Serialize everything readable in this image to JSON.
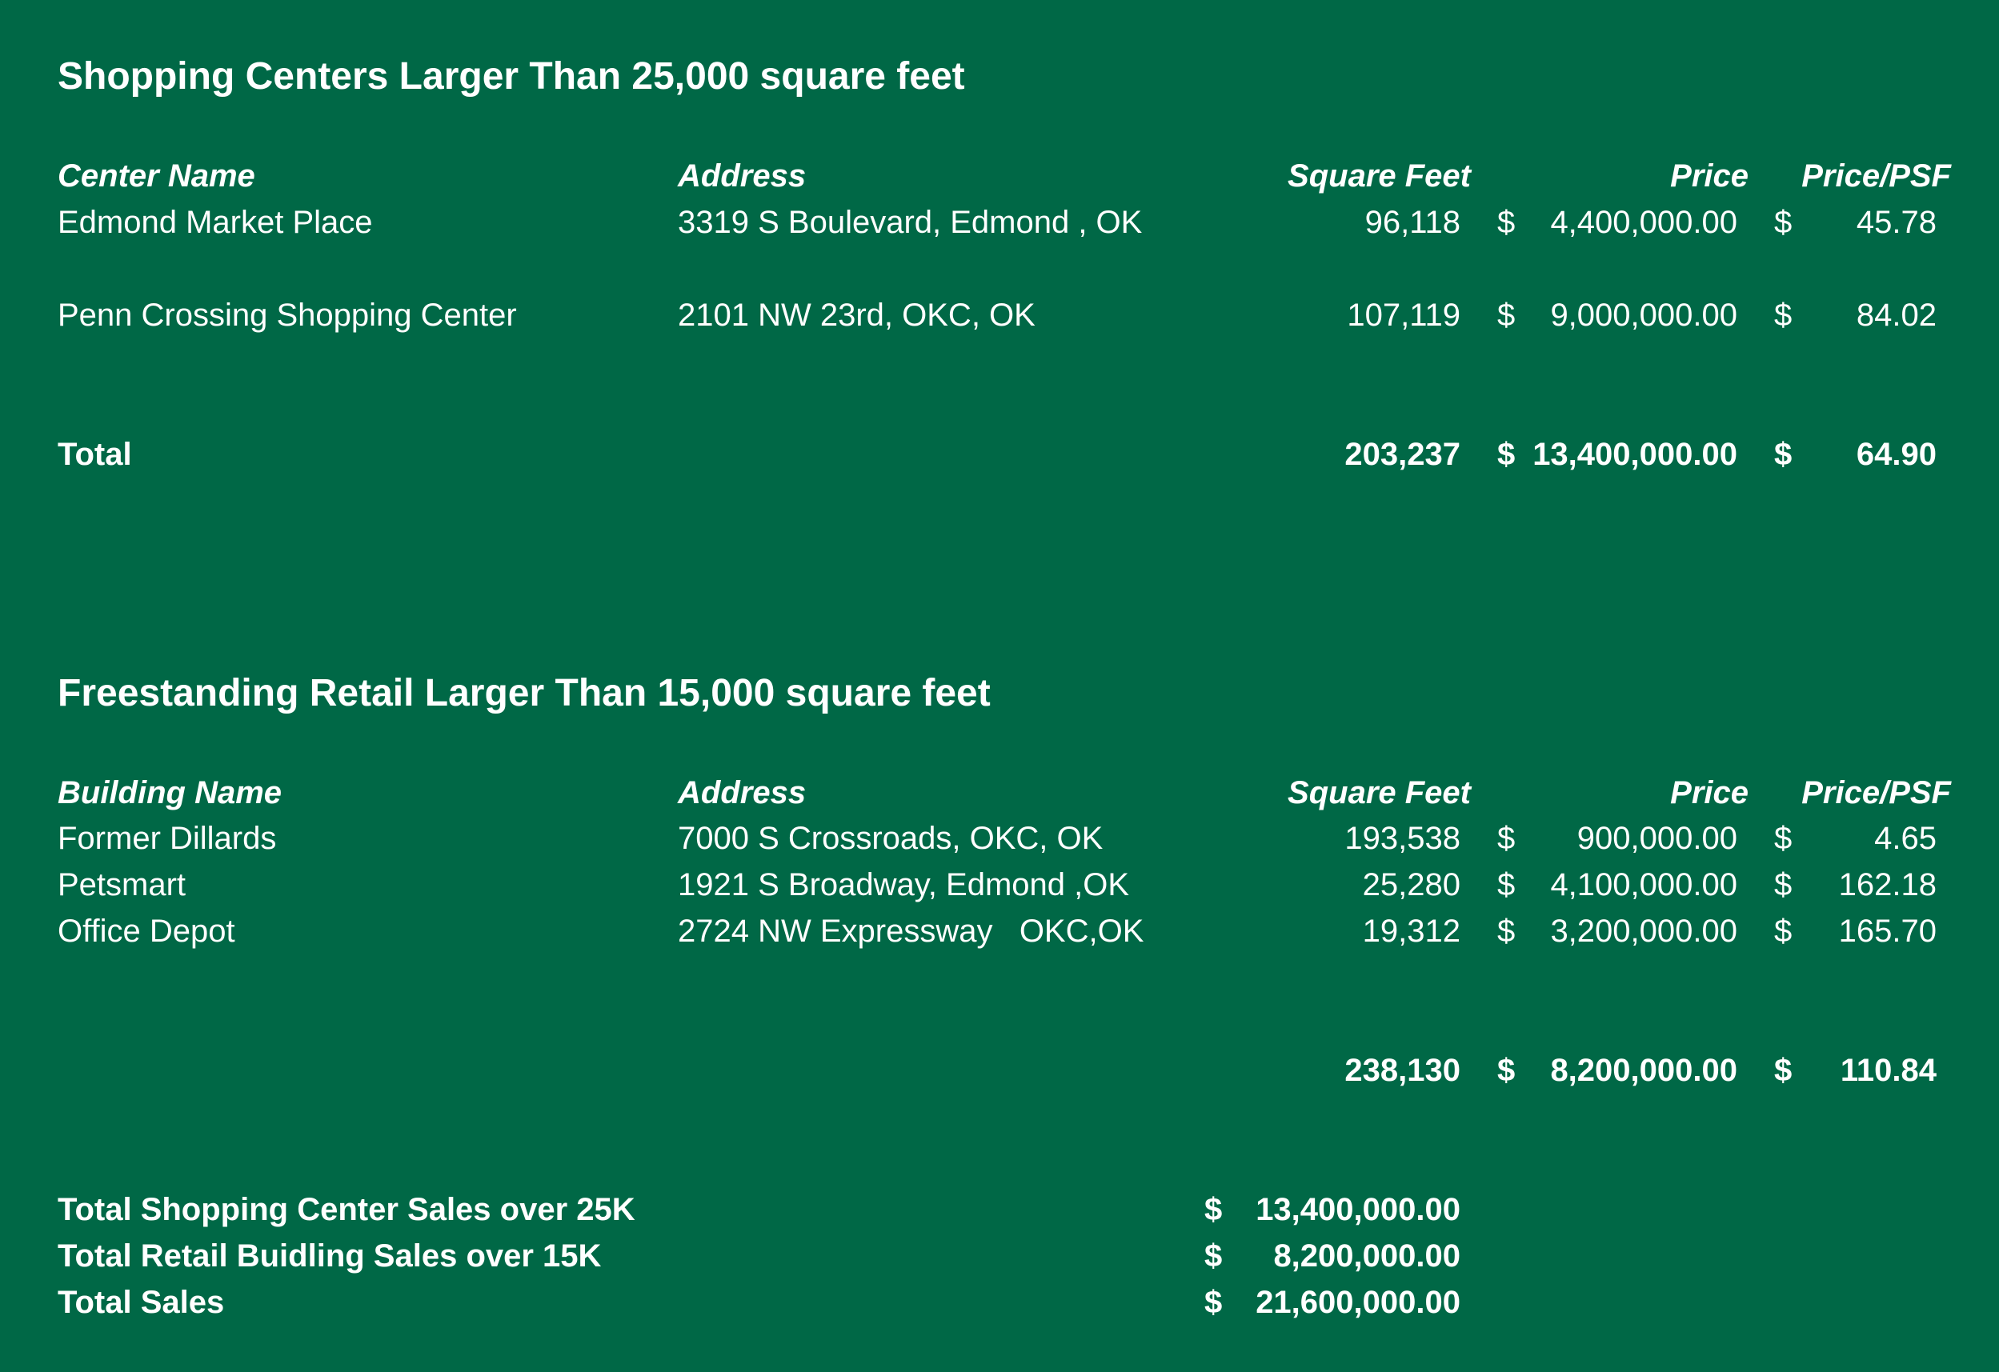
{
  "section1": {
    "title": "Shopping Centers Larger Than 25,000 square feet",
    "headers": {
      "name": "Center Name",
      "address": "Address",
      "sqft": "Square Feet",
      "price": "Price",
      "psf": "Price/PSF"
    },
    "rows": [
      {
        "name": "Edmond Market Place",
        "address": "3319 S Boulevard, Edmond , OK",
        "sqft": "96,118",
        "price_currency": "$",
        "price": "4,400,000.00",
        "psf_currency": "$",
        "psf": "45.78"
      },
      {
        "name": "Penn Crossing Shopping Center",
        "address": "2101 NW 23rd, OKC, OK",
        "sqft": "107,119",
        "price_currency": "$",
        "price": "9,000,000.00",
        "psf_currency": "$",
        "psf": "84.02"
      }
    ],
    "total": {
      "label": "Total",
      "sqft": "203,237",
      "price_currency": "$",
      "price": "13,400,000.00",
      "psf_currency": "$",
      "psf": "64.90"
    }
  },
  "section2": {
    "title": "Freestanding Retail Larger Than 15,000 square feet",
    "headers": {
      "name": "Building Name",
      "address": "Address",
      "sqft": "Square Feet",
      "price": "Price",
      "psf": "Price/PSF"
    },
    "rows": [
      {
        "name": "Former Dillards",
        "address": "7000 S Crossroads, OKC, OK",
        "sqft": "193,538",
        "price_currency": "$",
        "price": "900,000.00",
        "psf_currency": "$",
        "psf": "4.65"
      },
      {
        "name": "Petsmart",
        "address": "1921 S Broadway, Edmond ,OK",
        "sqft": "25,280",
        "price_currency": "$",
        "price": "4,100,000.00",
        "psf_currency": "$",
        "psf": "162.18"
      },
      {
        "name": "Office Depot",
        "address": "2724 NW Expressway   OKC,OK",
        "sqft": "19,312",
        "price_currency": "$",
        "price": "3,200,000.00",
        "psf_currency": "$",
        "psf": "165.70"
      }
    ],
    "total": {
      "sqft": "238,130",
      "price_currency": "$",
      "price": "8,200,000.00",
      "psf_currency": "$",
      "psf": "110.84"
    }
  },
  "summary": [
    {
      "label": "Total Shopping Center Sales over 25K",
      "currency": "$",
      "value": "13,400,000.00"
    },
    {
      "label": "Total Retail Buidling Sales over 15K",
      "currency": "$",
      "value": "8,200,000.00"
    },
    {
      "label": "Total Sales",
      "currency": "$",
      "value": "21,600,000.00"
    }
  ]
}
